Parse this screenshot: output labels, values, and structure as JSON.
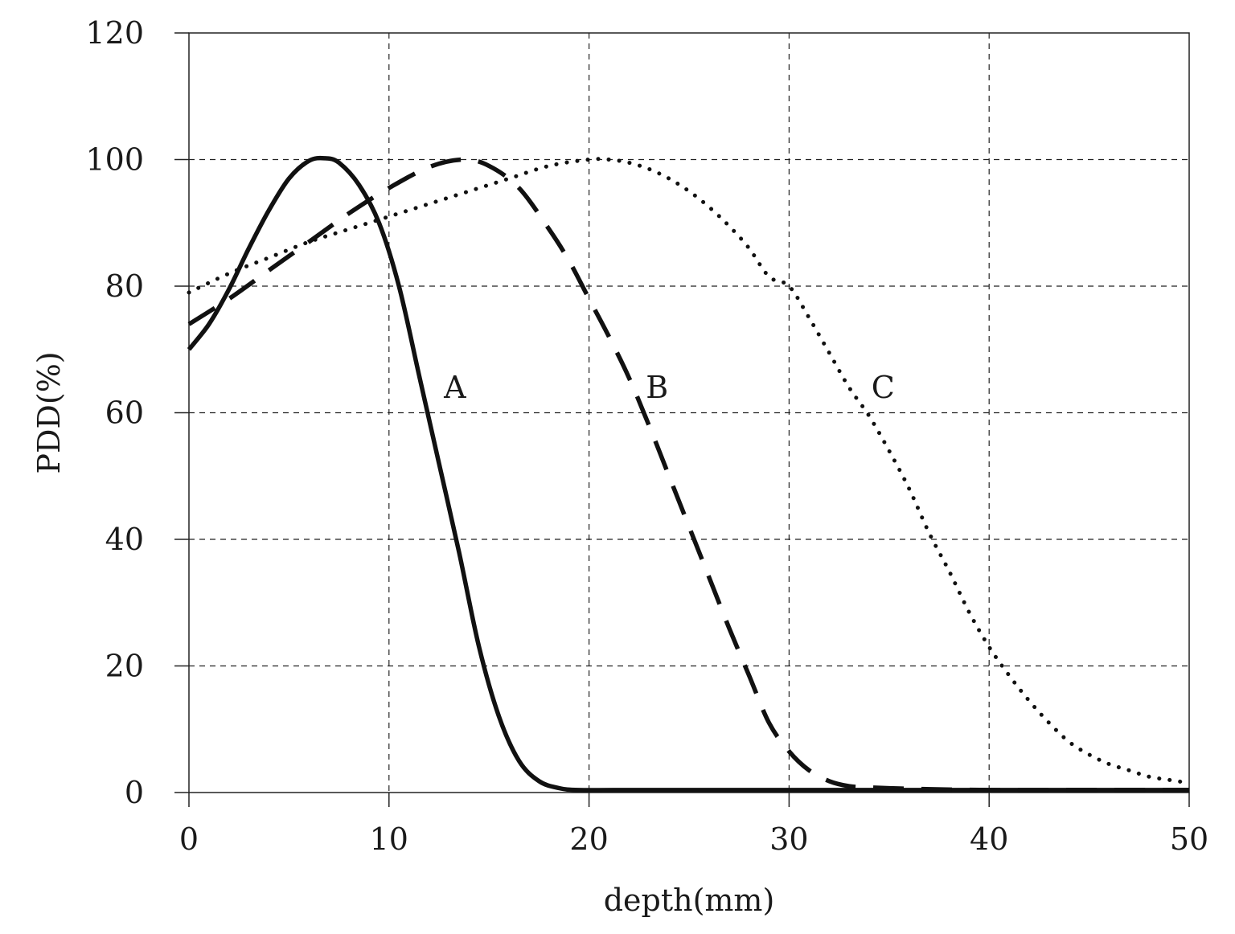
{
  "chart_data": {
    "type": "line",
    "xlabel": "depth(mm)",
    "ylabel": "PDD(%)",
    "xlim": [
      0,
      50
    ],
    "ylim": [
      0,
      120
    ],
    "x_ticks": [
      0,
      10,
      20,
      30,
      40,
      50
    ],
    "y_ticks": [
      0,
      20,
      40,
      60,
      80,
      100,
      120
    ],
    "grid": true,
    "series": [
      {
        "name": "A",
        "line_style": "solid",
        "color": "#111111",
        "label_at": [
          13.3,
          64
        ],
        "x": [
          0,
          1,
          2,
          3,
          4,
          5,
          6,
          6.8,
          7.5,
          8.5,
          9.5,
          10.5,
          11.5,
          12.5,
          13.5,
          14.5,
          15.5,
          16.5,
          17.5,
          18.5,
          19.5,
          22,
          30,
          40,
          50
        ],
        "y": [
          70,
          74,
          79.5,
          86,
          92,
          97,
          99.8,
          100.2,
          99.5,
          96,
          90,
          80,
          66,
          52,
          38,
          23,
          12,
          5,
          1.8,
          0.7,
          0.4,
          0.4,
          0.4,
          0.4,
          0.4
        ]
      },
      {
        "name": "B",
        "line_style": "dashed",
        "color": "#111111",
        "label_at": [
          23.4,
          64
        ],
        "x": [
          0,
          2,
          4,
          6,
          8,
          10,
          12,
          13.7,
          15,
          16.5,
          18,
          19,
          20,
          21,
          22,
          23,
          24,
          25,
          26,
          27,
          28,
          29,
          30,
          31,
          32,
          33,
          34,
          36,
          40,
          45,
          50
        ],
        "y": [
          74,
          78,
          82.5,
          87,
          91.5,
          95.5,
          98.8,
          100,
          99,
          95.5,
          89,
          84,
          78,
          72,
          65.5,
          58,
          50,
          42,
          34,
          26,
          18.5,
          11,
          6.5,
          3.5,
          1.8,
          1,
          0.8,
          0.6,
          0.4,
          0.4,
          0.4
        ]
      },
      {
        "name": "C",
        "line_style": "dotted",
        "color": "#111111",
        "label_at": [
          34.7,
          64
        ],
        "x": [
          0,
          2,
          4,
          6,
          8,
          10,
          12,
          14,
          16,
          18,
          20,
          21,
          22,
          23,
          24,
          25,
          26,
          27,
          28,
          29,
          30,
          31,
          32,
          33,
          34,
          35,
          36,
          37,
          38,
          39,
          40,
          41,
          42,
          43,
          44,
          45,
          46,
          47,
          48,
          49,
          50
        ],
        "y": [
          79,
          82,
          84.5,
          87,
          89,
          91,
          93,
          95,
          97,
          99,
          100,
          100,
          99.5,
          98.5,
          97,
          95,
          92.5,
          89.5,
          86,
          81.5,
          80,
          75,
          69.5,
          64,
          59.5,
          54,
          48,
          41,
          35,
          28.5,
          23,
          18.5,
          14.5,
          11,
          8,
          6,
          4.5,
          3.5,
          2.5,
          2,
          1.5
        ]
      }
    ]
  }
}
